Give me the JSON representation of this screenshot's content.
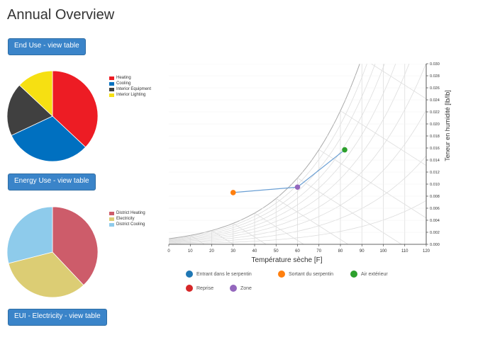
{
  "page": {
    "title": "Annual Overview"
  },
  "buttons": {
    "end_use": "End Use - view table",
    "energy_use": "Energy Use - view table",
    "eui_electricity": "EUI - Electricity - view table"
  },
  "end_use_legend": [
    {
      "label": "Heating",
      "color": "#ed1c24"
    },
    {
      "label": "Cooling",
      "color": "#0070c0"
    },
    {
      "label": "Interior Equipment",
      "color": "#404040"
    },
    {
      "label": "Interior Lighting",
      "color": "#f6e012"
    }
  ],
  "energy_use_legend": [
    {
      "label": "District Heating",
      "color": "#cd5c6a"
    },
    {
      "label": "Electricity",
      "color": "#dccd74"
    },
    {
      "label": "District Cooling",
      "color": "#8ecbeb"
    }
  ],
  "psychro_legend": [
    {
      "label": "Entrant dans le serpentin",
      "color": "#1f77b4"
    },
    {
      "label": "Sortant du serpentin",
      "color": "#ff7f0e"
    },
    {
      "label": "Air extérieur",
      "color": "#2ca02c"
    },
    {
      "label": "Reprise",
      "color": "#d62728"
    },
    {
      "label": "Zone",
      "color": "#9467bd"
    }
  ],
  "chart_data": [
    {
      "type": "pie",
      "series": [
        {
          "name": "Heating",
          "value": 37
        },
        {
          "name": "Cooling",
          "value": 31
        },
        {
          "name": "Interior Equipment",
          "value": 19
        },
        {
          "name": "Interior Lighting",
          "value": 13
        }
      ],
      "legend_position": "right"
    },
    {
      "type": "pie",
      "series": [
        {
          "name": "District Heating",
          "value": 38
        },
        {
          "name": "Electricity",
          "value": 33
        },
        {
          "name": "District Cooling",
          "value": 29
        }
      ],
      "legend_position": "right"
    },
    {
      "type": "scatter",
      "xlabel": "Température sèche [F]",
      "ylabel": "Teneur en humidité [lb/lb]",
      "xlim": [
        0,
        120
      ],
      "ylim": [
        0,
        0.03
      ],
      "x_ticks": [
        0,
        10,
        20,
        30,
        40,
        50,
        60,
        70,
        80,
        90,
        100,
        110,
        120
      ],
      "y_ticks": [
        0.0,
        0.002,
        0.004,
        0.006,
        0.008,
        0.01,
        0.012,
        0.014,
        0.016,
        0.018,
        0.02,
        0.022,
        0.024,
        0.026,
        0.028,
        0.03
      ],
      "grid": true,
      "legend_position": "bottom",
      "series": [
        {
          "name": "Sortant du serpentin",
          "color": "#ff7f0e",
          "points": [
            {
              "x": 30,
              "y": 0.0086
            }
          ]
        },
        {
          "name": "Zone",
          "color": "#9467bd",
          "points": [
            {
              "x": 60,
              "y": 0.0095
            }
          ]
        },
        {
          "name": "Air extérieur",
          "color": "#2ca02c",
          "points": [
            {
              "x": 82,
              "y": 0.0157
            }
          ]
        }
      ],
      "connecting_line": {
        "color": "#6a9fd4",
        "order": [
          "Sortant du serpentin",
          "Zone",
          "Air extérieur"
        ]
      }
    }
  ]
}
